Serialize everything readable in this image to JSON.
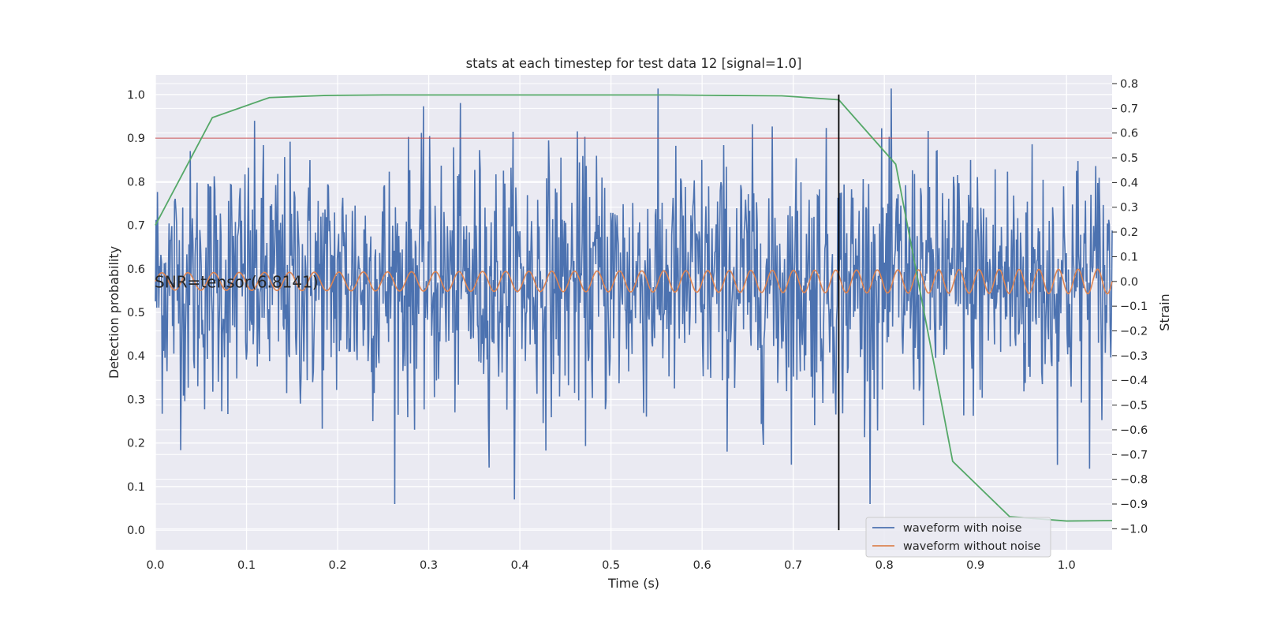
{
  "chart_data": {
    "type": "line",
    "title": "stats at each timestep for test data 12 [signal=1.0]",
    "xlabel": "Time (s)",
    "ylabel_left": "Detection probability",
    "ylabel_right": "Strain",
    "xlim": [
      0.0,
      1.05
    ],
    "ylim_left": [
      -0.045,
      1.045
    ],
    "ylim_right": [
      -1.085,
      0.835
    ],
    "x_ticks": [
      0.0,
      0.1,
      0.2,
      0.3,
      0.4,
      0.5,
      0.6,
      0.7,
      0.8,
      0.9,
      1.0
    ],
    "x_tick_labels": [
      "0.0",
      "0.1",
      "0.2",
      "0.3",
      "0.4",
      "0.5",
      "0.6",
      "0.7",
      "0.8",
      "0.9",
      "1.0"
    ],
    "y_left_ticks": [
      0.0,
      0.1,
      0.2,
      0.3,
      0.4,
      0.5,
      0.6,
      0.7,
      0.8,
      0.9,
      1.0
    ],
    "y_left_tick_labels": [
      "0.0",
      "0.1",
      "0.2",
      "0.3",
      "0.4",
      "0.5",
      "0.6",
      "0.7",
      "0.8",
      "0.9",
      "1.0"
    ],
    "y_right_ticks": [
      0.8,
      0.7,
      0.6,
      0.5,
      0.4,
      0.3,
      0.2,
      0.1,
      0.0,
      -0.1,
      -0.2,
      -0.3,
      -0.4,
      -0.5,
      -0.6,
      -0.7,
      -0.8,
      -0.9,
      -1.0
    ],
    "y_right_tick_labels": [
      "0.8",
      "0.7",
      "0.6",
      "0.5",
      "0.4",
      "0.3",
      "0.2",
      "0.1",
      "0.0",
      "−0.1",
      "−0.2",
      "−0.3",
      "−0.4",
      "−0.5",
      "−0.6",
      "−0.7",
      "−0.8",
      "−0.9",
      "−1.0"
    ],
    "grid": true,
    "annotation": "SNR=tensor(6.8141)",
    "threshold": {
      "y": 0.9,
      "color": "#c44e52"
    },
    "vline": {
      "x": 0.75,
      "y_range": [
        0.0,
        1.0
      ],
      "color": "#000000"
    },
    "detection_probability": {
      "axis": "left",
      "color": "#55a868",
      "x": [
        0.0,
        0.0625,
        0.125,
        0.1875,
        0.25,
        0.3125,
        0.375,
        0.4375,
        0.5,
        0.5625,
        0.625,
        0.6875,
        0.75,
        0.8125,
        0.875,
        0.9375,
        1.0,
        1.05
      ],
      "y": [
        0.7,
        0.947,
        0.993,
        0.998,
        0.999,
        0.999,
        0.999,
        0.999,
        0.999,
        0.999,
        0.998,
        0.997,
        0.988,
        0.84,
        0.158,
        0.031,
        0.021,
        0.022
      ]
    },
    "series": [
      {
        "name": "waveform with noise",
        "axis": "right",
        "color": "#4c72b0",
        "description": "dense noisy strain trace, amplitude roughly -0.9 to +0.8",
        "x_start": 0.0,
        "x_end": 1.05,
        "n_points": 1400,
        "y_min": -0.9,
        "y_max": 0.78,
        "sigma": 0.26
      },
      {
        "name": "waveform without noise",
        "axis": "right",
        "color": "#dd8452",
        "description": "clean chirp, amplitude about 0.04 rising to 0.05",
        "x_start": 0.0,
        "x_end": 1.05,
        "n_cycles": 43,
        "amp_start": 0.035,
        "amp_end": 0.05
      }
    ],
    "legend": {
      "placement": "lower-right",
      "entries": [
        {
          "label": "waveform with noise",
          "color": "#4c72b0"
        },
        {
          "label": "waveform without noise",
          "color": "#dd8452"
        }
      ]
    }
  }
}
